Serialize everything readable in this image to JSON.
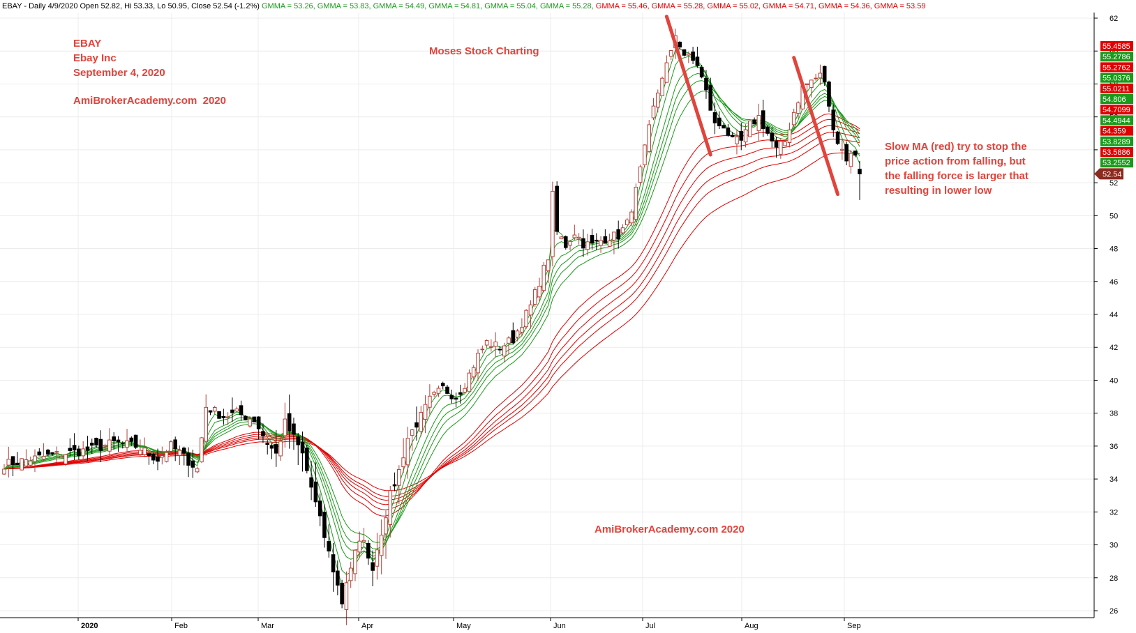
{
  "header": {
    "segments": [
      {
        "text": "EBAY - Daily 4/9/2020 Open 52.82, Hi 53.33, Lo 50.95, Close 52.54 (-1.2%) ",
        "color": "#000000"
      },
      {
        "text": "GMMA = 53.26, ",
        "color": "#1a9a1a"
      },
      {
        "text": "GMMA = 53.83, ",
        "color": "#1a9a1a"
      },
      {
        "text": "GMMA = 54.49, ",
        "color": "#1a9a1a"
      },
      {
        "text": "GMMA = 54.81, ",
        "color": "#1a9a1a"
      },
      {
        "text": "GMMA = 55.04, ",
        "color": "#1a9a1a"
      },
      {
        "text": "GMMA = 55.28, ",
        "color": "#1a9a1a"
      },
      {
        "text": "GMMA = 55.46, ",
        "color": "#e00000"
      },
      {
        "text": "GMMA = 55.28, ",
        "color": "#e00000"
      },
      {
        "text": "GMMA = 55.02, ",
        "color": "#e00000"
      },
      {
        "text": "GMMA = 54.71, ",
        "color": "#e00000"
      },
      {
        "text": "GMMA = 54.36, ",
        "color": "#e00000"
      },
      {
        "text": "GMMA = 53.59",
        "color": "#e00000"
      }
    ]
  },
  "annotations": {
    "ticker": "EBAY",
    "company": "Ebay Inc",
    "date": "September 4, 2020",
    "site_top": "AmiBrokerAcademy.com  2020",
    "charting": "Moses Stock Charting",
    "site_bottom": "AmiBrokerAcademy.com 2020",
    "note_lines": [
      "Slow MA (red) try to stop the",
      "price action from falling, but",
      "the falling force is larger that",
      "resulting in lower low"
    ]
  },
  "colors": {
    "up": "#b2413a",
    "down": "#000000",
    "fast_ma": "#1a9a1a",
    "slow_ma": "#e00000",
    "annotation": "#e0443c",
    "grid": "#ececec"
  },
  "chart_data": {
    "type": "candlestick",
    "title": "EBAY - Daily",
    "ylim": [
      25,
      63
    ],
    "y_ticks": [
      26,
      28,
      30,
      32,
      34,
      36,
      38,
      40,
      42,
      44,
      46,
      48,
      50,
      52,
      54,
      56,
      58,
      60,
      62
    ],
    "x_ticks": [
      "2020",
      "Feb",
      "Mar",
      "Apr",
      "May",
      "Jun",
      "Jul",
      "Aug",
      "Sep"
    ],
    "grid": true,
    "last_close": 52.54,
    "price_path": [
      [
        0,
        34.9
      ],
      [
        10,
        35.4
      ],
      [
        20,
        35.8
      ],
      [
        25,
        36.2
      ],
      [
        30,
        36.0
      ],
      [
        35,
        35.2
      ],
      [
        38,
        36.0
      ],
      [
        40,
        35.6
      ],
      [
        44,
        34.6
      ],
      [
        46,
        38.4
      ],
      [
        50,
        37.8
      ],
      [
        53,
        38.0
      ],
      [
        57,
        37.6
      ],
      [
        60,
        36.2
      ],
      [
        62,
        35.5
      ],
      [
        64,
        37.4
      ],
      [
        66,
        36.5
      ],
      [
        68,
        35.5
      ],
      [
        70,
        33.5
      ],
      [
        72,
        31.5
      ],
      [
        74,
        29.5
      ],
      [
        76,
        27.5
      ],
      [
        77,
        26.5
      ],
      [
        78,
        27.8
      ],
      [
        80,
        29.5
      ],
      [
        82,
        30.5
      ],
      [
        83,
        29.0
      ],
      [
        84,
        28.7
      ],
      [
        86,
        30.8
      ],
      [
        88,
        33.0
      ],
      [
        90,
        34.5
      ],
      [
        92,
        36.5
      ],
      [
        95,
        37.8
      ],
      [
        97,
        38.8
      ],
      [
        100,
        39.5
      ],
      [
        103,
        39.0
      ],
      [
        105,
        39.8
      ],
      [
        108,
        41.5
      ],
      [
        110,
        42.3
      ],
      [
        113,
        42.0
      ],
      [
        116,
        42.5
      ],
      [
        118,
        43.5
      ],
      [
        120,
        44.5
      ],
      [
        122,
        46.0
      ],
      [
        124,
        47.5
      ],
      [
        125,
        51.2
      ],
      [
        126,
        49.0
      ],
      [
        128,
        48.2
      ],
      [
        130,
        49.0
      ],
      [
        132,
        48.3
      ],
      [
        134,
        48.2
      ],
      [
        136,
        48.5
      ],
      [
        138,
        48.7
      ],
      [
        140,
        48.8
      ],
      [
        142,
        49.5
      ],
      [
        144,
        51.5
      ],
      [
        146,
        54.0
      ],
      [
        148,
        56.5
      ],
      [
        150,
        58.5
      ],
      [
        152,
        59.8
      ],
      [
        153,
        61.0
      ],
      [
        155,
        59.8
      ],
      [
        158,
        59.2
      ],
      [
        160,
        57.5
      ],
      [
        162,
        55.5
      ],
      [
        164,
        55.5
      ],
      [
        166,
        54.5
      ],
      [
        168,
        54.5
      ],
      [
        170,
        55.5
      ],
      [
        172,
        56.0
      ],
      [
        174,
        55.0
      ],
      [
        176,
        54.0
      ],
      [
        178,
        54.5
      ],
      [
        180,
        56.3
      ],
      [
        182,
        57.8
      ],
      [
        184,
        58.2
      ],
      [
        186,
        58.5
      ],
      [
        187,
        58.2
      ],
      [
        188,
        56.5
      ],
      [
        190,
        54.5
      ],
      [
        192,
        53.5
      ],
      [
        194,
        53.8
      ],
      [
        195,
        52.5
      ]
    ],
    "candle_count": 196,
    "fast_ma_last": [
      53.26,
      53.83,
      54.49,
      54.81,
      55.04,
      55.28
    ],
    "slow_ma_last": [
      55.46,
      55.28,
      55.02,
      54.71,
      54.36,
      53.59
    ],
    "fast_periods": [
      3,
      5,
      8,
      10,
      12,
      15
    ],
    "slow_periods": [
      30,
      35,
      40,
      45,
      50,
      60
    ],
    "price_tags": [
      {
        "label": "55.4585",
        "color": "#e00000"
      },
      {
        "label": "55.2786",
        "color": "#1a9a1a"
      },
      {
        "label": "55.2762",
        "color": "#e00000"
      },
      {
        "label": "55.0376",
        "color": "#1a9a1a"
      },
      {
        "label": "55.0211",
        "color": "#e00000"
      },
      {
        "label": "54.806",
        "color": "#1a9a1a"
      },
      {
        "label": "54.7099",
        "color": "#e00000"
      },
      {
        "label": "54.4944",
        "color": "#1a9a1a"
      },
      {
        "label": "54.359",
        "color": "#e00000"
      },
      {
        "label": "53.8289",
        "color": "#1a9a1a"
      },
      {
        "label": "53.5886",
        "color": "#e00000"
      },
      {
        "label": "53.2552",
        "color": "#1a9a1a"
      }
    ],
    "close_tag": {
      "label": "52.54",
      "color": "#8b2a1e"
    },
    "trend_lines": [
      {
        "from": [
          151,
          62.1
        ],
        "to": [
          161,
          53.7
        ]
      },
      {
        "from": [
          180,
          59.6
        ],
        "to": [
          190,
          51.3
        ]
      }
    ]
  }
}
